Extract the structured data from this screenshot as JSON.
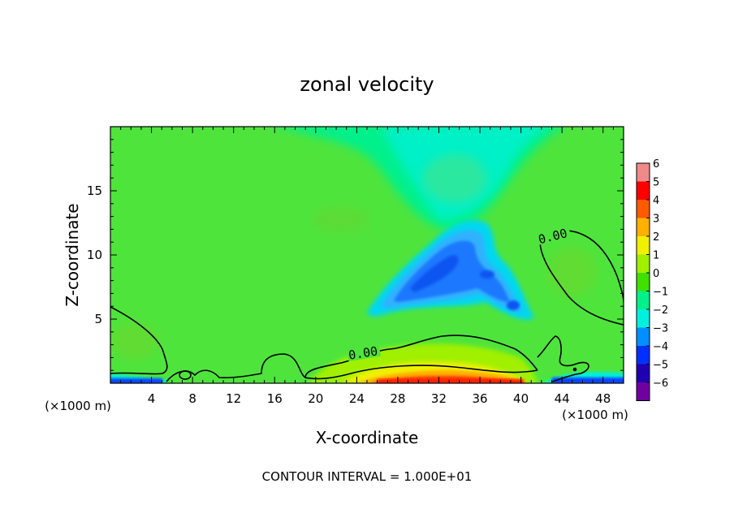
{
  "chart_data": {
    "type": "heatmap",
    "title": "zonal velocity",
    "xlabel": "X-coordinate",
    "ylabel": "Z-coordinate",
    "xunit_left": "(×1000 m)",
    "xunit_right": "(×1000 m)",
    "xlim": [
      0,
      50
    ],
    "ylim": [
      0,
      20
    ],
    "xticks": [
      4,
      8,
      12,
      16,
      20,
      24,
      28,
      32,
      36,
      40,
      44,
      48
    ],
    "yticks": [
      5,
      10,
      15
    ],
    "footer": "CONTOUR INTERVAL = 1.000E+01",
    "contour_label": "0.00",
    "colorbar": {
      "ticks": [
        "6",
        "5",
        "4",
        "3",
        "2",
        "1",
        "0",
        "−1",
        "−2",
        "−3",
        "−4",
        "−5",
        "−6"
      ],
      "levels": [
        {
          "value": 5.5,
          "color": "#f08a8a"
        },
        {
          "value": 4.5,
          "color": "#ff0000"
        },
        {
          "value": 3.5,
          "color": "#ff5a00"
        },
        {
          "value": 2.5,
          "color": "#ffb000"
        },
        {
          "value": 1.5,
          "color": "#f0f000"
        },
        {
          "value": 0.5,
          "color": "#a0f000"
        },
        {
          "value": -0.5,
          "color": "#40e000"
        },
        {
          "value": -1.5,
          "color": "#00f08c"
        },
        {
          "value": -2.5,
          "color": "#00f0e0"
        },
        {
          "value": -3.5,
          "color": "#0090ff"
        },
        {
          "value": -4.5,
          "color": "#0030ff"
        },
        {
          "value": -5.5,
          "color": "#2000b0"
        },
        {
          "value": -6.5,
          "color": "#7000a0"
        }
      ]
    }
  }
}
